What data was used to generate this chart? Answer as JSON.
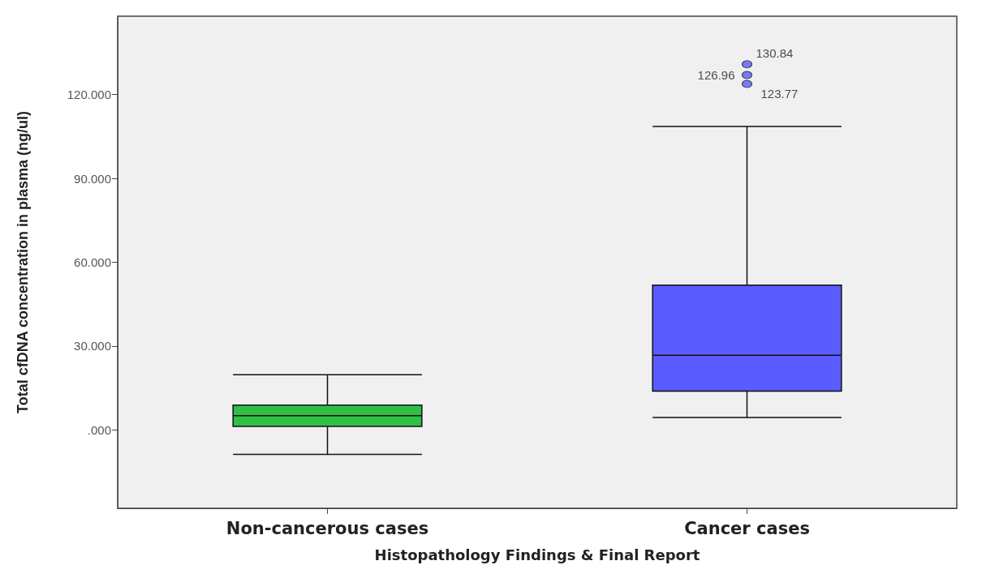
{
  "chart_data": {
    "type": "box",
    "xlabel": "Histopathology Findings & Final Report",
    "ylabel": "Total cfDNA concentration in plasma (ng/ul)",
    "categories": [
      "Non-cancerous cases",
      "Cancer cases"
    ],
    "colors": [
      "#2fbf47",
      "#5a5cff"
    ],
    "boxes": [
      {
        "low": -8.7,
        "q1": 1.3,
        "median": 5.1,
        "q3": 8.9,
        "high": 19.8
      },
      {
        "low": 4.5,
        "q1": 13.9,
        "median": 26.7,
        "q3": 51.8,
        "high": 108.6,
        "outliers": [
          130.84,
          126.96,
          123.77
        ]
      }
    ],
    "annotations": [
      "130.84",
      "126.96",
      "123.77"
    ],
    "ylim": [
      -28,
      148
    ],
    "yticks": [
      {
        "value": 0,
        "label": ".000"
      },
      {
        "value": 30,
        "label": "30.000"
      },
      {
        "value": 60,
        "label": "60.000"
      },
      {
        "value": 90,
        "label": "90.000"
      },
      {
        "value": 120,
        "label": "120.000"
      }
    ],
    "grid": false
  }
}
